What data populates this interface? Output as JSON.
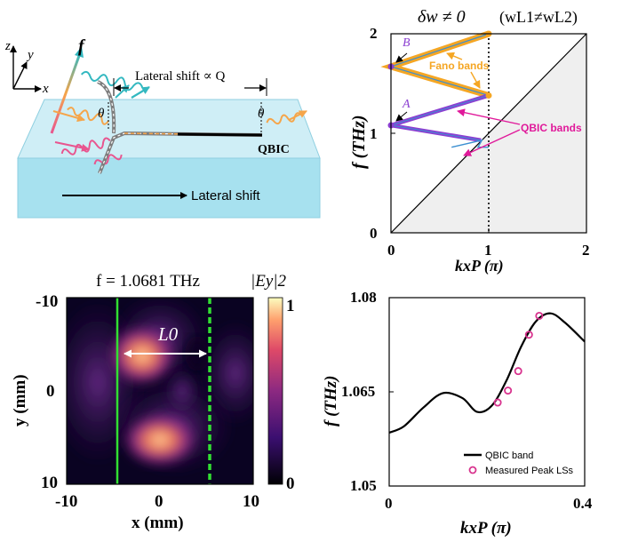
{
  "figure": {
    "panel_a": {
      "axes": {
        "z": "z",
        "y": "y",
        "x": "x"
      },
      "f_label": "f",
      "lateral_shift_formula": "Lateral shift ∝ Q",
      "theta_left": "θ",
      "theta_right": "θ",
      "qbic_label": "QBIC",
      "lateral_shift_arrow": "Lateral shift",
      "colors": {
        "slab_top": "#cfeef6",
        "slab_front": "#a7e1ef",
        "teal": "#33b8c0",
        "orange": "#f5a54a",
        "pink": "#e8558f",
        "grey": "#7d7d7d"
      }
    },
    "panel_b": {
      "title_left": "δw ≠ 0",
      "title_right": "(wL1≠wL2)",
      "ylabel": "f (THz)",
      "xlabel": "kxP (π)",
      "ytick_labels": [
        "0",
        "1",
        "2"
      ],
      "xtick_labels": [
        "0",
        "1",
        "2"
      ],
      "point_labels": {
        "A": "A",
        "B": "B"
      },
      "annot_fano": "Fano bands",
      "annot_qbic": "QBIC bands",
      "colors": {
        "fano": "#f5a623",
        "qbic": "#8c3fd1",
        "blue": "#3c8fd1",
        "annot_qbic": "#e0199a",
        "cone_fill": "#efefef"
      }
    },
    "panel_c": {
      "title": "f = 1.0681 THz",
      "colorbar_title": "|Ey|2",
      "colorbar_ticks": [
        "1",
        "0"
      ],
      "ylabel": "y (mm)",
      "xlabel": "x (mm)",
      "ytick_labels": [
        "-10",
        "0",
        "10"
      ],
      "xtick_labels": [
        "-10",
        "0",
        "10"
      ],
      "shift_label": "L0",
      "colors": {
        "line": "#32e032"
      }
    },
    "panel_d": {
      "ylabel": "f (THz)",
      "xlabel": "kxP (π)",
      "ytick_labels": [
        "1.05",
        "1.065",
        "1.08"
      ],
      "xtick_labels": [
        "0",
        "0.4"
      ],
      "legend_line": "QBIC band",
      "legend_marker": "Measured Peak LSs",
      "colors": {
        "marker": "#d8338e"
      }
    }
  },
  "chart_data": [
    {
      "type": "line",
      "title": "δw ≠ 0 (wL1≠wL2)",
      "xlabel": "kxP (π)",
      "ylabel": "f (THz)",
      "xlim": [
        0,
        2
      ],
      "ylim": [
        0,
        2
      ],
      "grid": false,
      "series": [
        {
          "name": "Fano bands",
          "x": [
            0,
            1,
            0,
            1
          ],
          "values": [
            1.67,
            2.0,
            1.67,
            1.38
          ]
        },
        {
          "name": "QBIC bands",
          "x": [
            0,
            1,
            0,
            0.92
          ],
          "values": [
            1.08,
            1.38,
            1.08,
            0.93
          ]
        },
        {
          "x": [
            0.62,
            0.93,
            0.89,
            1.0
          ],
          "values": [
            0.86,
            0.93,
            0.86,
            0.86
          ]
        },
        {
          "x": [
            0,
            2
          ],
          "values": [
            0,
            2
          ]
        }
      ],
      "annotations": [
        "A",
        "B",
        "Fano bands",
        "QBIC bands"
      ]
    },
    {
      "type": "heatmap",
      "title": "f = 1.0681 THz",
      "xlabel": "x (mm)",
      "ylabel": "y (mm)",
      "xlim": [
        -10,
        10
      ],
      "ylim": [
        -10,
        10
      ],
      "colorbar_range": [
        0,
        1
      ],
      "vertical_lines": [
        {
          "x": -4.5,
          "style": "solid"
        },
        {
          "x": 5.5,
          "style": "dashed"
        }
      ],
      "annotations": [
        "L0"
      ]
    },
    {
      "type": "line",
      "xlabel": "kxP (π)",
      "ylabel": "f (THz)",
      "xlim": [
        0,
        0.4
      ],
      "ylim": [
        1.05,
        1.08
      ],
      "legend": "bottom-right",
      "series": [
        {
          "name": "QBIC band",
          "x": [
            0,
            0.03,
            0.07,
            0.11,
            0.15,
            0.18,
            0.21,
            0.24,
            0.27,
            0.3,
            0.33,
            0.36,
            0.4
          ],
          "values": [
            1.0585,
            1.0595,
            1.0625,
            1.0648,
            1.064,
            1.0618,
            1.0628,
            1.0668,
            1.0722,
            1.0762,
            1.0775,
            1.076,
            1.073
          ]
        },
        {
          "name": "Measured Peak LSs",
          "x": [
            0.222,
            0.243,
            0.264,
            0.286,
            0.307
          ],
          "values": [
            1.0633,
            1.0652,
            1.0683,
            1.0741,
            1.0771
          ]
        }
      ]
    }
  ]
}
